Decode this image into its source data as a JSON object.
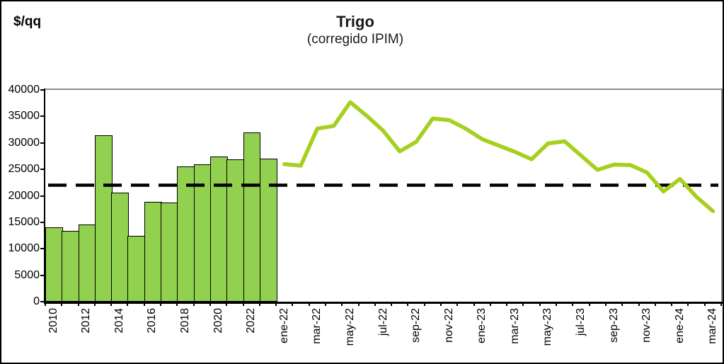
{
  "header": {
    "unit_label": "$/qq",
    "title": "Trigo",
    "subtitle": "(corregido IPIM)"
  },
  "chart_data": {
    "type": "combo-bar-line",
    "title": "Trigo",
    "subtitle": "(corregido IPIM)",
    "ylabel": "$/qq",
    "ylim": [
      0,
      40000
    ],
    "yticks": [
      0,
      5000,
      10000,
      15000,
      20000,
      25000,
      30000,
      35000,
      40000
    ],
    "grid": false,
    "legend": false,
    "reference_line": {
      "value": 22000,
      "style": "dashed",
      "color": "#000000"
    },
    "bars": {
      "color": "#92D050",
      "border_color": "#000000",
      "categories": [
        "2010",
        "2011",
        "2012",
        "2013",
        "2014",
        "2015",
        "2016",
        "2017",
        "2018",
        "2019",
        "2020",
        "2021",
        "2022",
        "2023"
      ],
      "values": [
        14100,
        13400,
        14600,
        31400,
        20600,
        12500,
        18900,
        18700,
        25500,
        25900,
        27400,
        26900,
        32000,
        27000
      ]
    },
    "line": {
      "color": "#A5D01E",
      "categories": [
        "ene-22",
        "feb-22",
        "mar-22",
        "abr-22",
        "may-22",
        "jun-22",
        "jul-22",
        "ago-22",
        "sep-22",
        "oct-22",
        "nov-22",
        "dic-22",
        "ene-23",
        "feb-23",
        "mar-23",
        "abr-23",
        "may-23",
        "jun-23",
        "jul-23",
        "ago-23",
        "sep-23",
        "oct-23",
        "nov-23",
        "dic-23",
        "ene-24",
        "feb-24",
        "mar-24"
      ],
      "values": [
        26000,
        25700,
        32700,
        33200,
        37700,
        35100,
        32300,
        28400,
        30200,
        34600,
        34300,
        32700,
        30700,
        29500,
        28300,
        26900,
        29900,
        30300,
        27600,
        24900,
        25900,
        25800,
        24400,
        20800,
        23200,
        19800,
        17100
      ]
    },
    "x_tick_labels": [
      "2010",
      "2012",
      "2014",
      "2016",
      "2018",
      "2020",
      "2022",
      "ene-22",
      "mar-22",
      "may-22",
      "jul-22",
      "sep-22",
      "nov-22",
      "ene-23",
      "mar-23",
      "may-23",
      "jul-23",
      "sep-23",
      "nov-23",
      "ene-24",
      "mar-24"
    ]
  }
}
